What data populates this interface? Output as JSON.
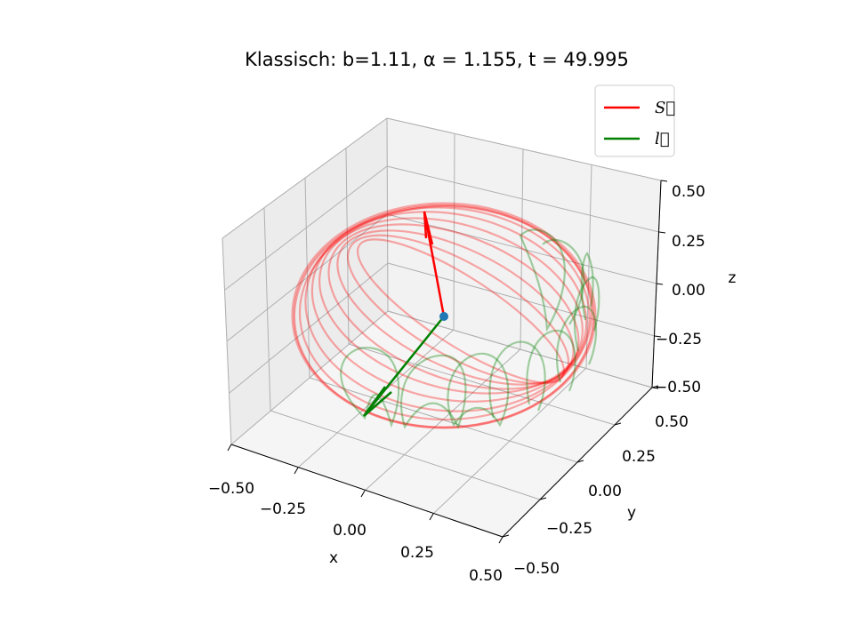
{
  "chart_data": {
    "type": "line3d",
    "title": "Klassisch:   b=1.11, α = 1.155, t = 49.995",
    "xlabel": "x",
    "ylabel": "y",
    "zlabel": "z",
    "xlim": [
      -0.5,
      0.5
    ],
    "ylim": [
      -0.5,
      0.5
    ],
    "zlim": [
      -0.5,
      0.5
    ],
    "x_ticks": [
      "−0.50",
      "−0.25",
      "0.00",
      "0.25",
      "0.50"
    ],
    "y_ticks": [
      "−0.50",
      "−0.25",
      "0.00",
      "0.25",
      "0.50"
    ],
    "z_ticks": [
      "−0.50",
      "−0.25",
      "0.00",
      "0.25",
      "0.50"
    ],
    "grid": true,
    "legend": {
      "placement": "top-right",
      "entries": [
        {
          "label": "S⃗",
          "color": "#ff0000"
        },
        {
          "label": "l⃗",
          "color": "#008000"
        }
      ]
    },
    "origin_point": {
      "x": 0.0,
      "y": 0.0,
      "z": 0.0,
      "color": "#1f77b4"
    },
    "vectors": [
      {
        "name": "S",
        "color": "#ff0000",
        "from": [
          0,
          0,
          0
        ],
        "to": [
          -0.05,
          -0.08,
          0.46
        ]
      },
      {
        "name": "l",
        "color": "#008000",
        "from": [
          0,
          0,
          0
        ],
        "to": [
          -0.12,
          -0.42,
          -0.33
        ]
      }
    ],
    "trajectories": [
      {
        "name": "S-trajectory",
        "color": "#ff0000",
        "alpha": 0.33,
        "description_radius": 0.46
      },
      {
        "name": "l-trajectory",
        "color": "#008000",
        "alpha": 0.35
      }
    ]
  },
  "colors": {
    "pane_back": "#f2f2f2",
    "pane_side": "#ececec",
    "pane_floor": "#f5f5f5",
    "grid": "#b0b0b0"
  }
}
